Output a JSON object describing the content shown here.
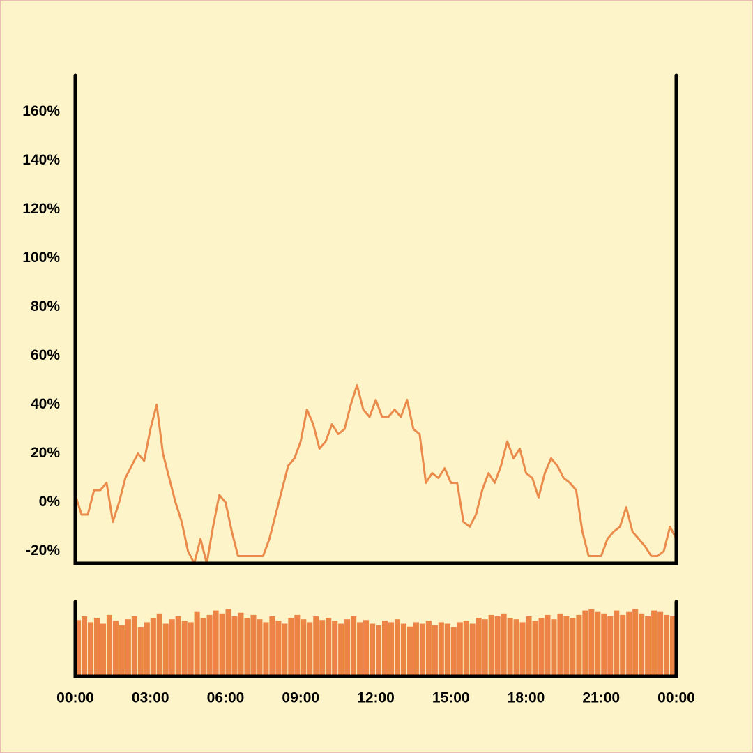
{
  "chart_data": [
    {
      "type": "line",
      "x": [
        0,
        0.25,
        0.5,
        0.75,
        1,
        1.25,
        1.5,
        1.75,
        2,
        2.25,
        2.5,
        2.75,
        3,
        3.25,
        3.5,
        3.75,
        4,
        4.25,
        4.5,
        4.75,
        5,
        5.25,
        5.5,
        5.75,
        6,
        6.25,
        6.5,
        6.75,
        7,
        7.25,
        7.5,
        7.75,
        8,
        8.25,
        8.5,
        8.75,
        9,
        9.25,
        9.5,
        9.75,
        10,
        10.25,
        10.5,
        10.75,
        11,
        11.25,
        11.5,
        11.75,
        12,
        12.25,
        12.5,
        12.75,
        13,
        13.25,
        13.5,
        13.75,
        14,
        14.25,
        14.5,
        14.75,
        15,
        15.25,
        15.5,
        15.75,
        16,
        16.25,
        16.5,
        16.75,
        17,
        17.25,
        17.5,
        17.75,
        18,
        18.25,
        18.5,
        18.75,
        19,
        19.25,
        19.5,
        19.75,
        20,
        20.25,
        20.5,
        20.75,
        21,
        21.25,
        21.5,
        21.75,
        22,
        22.25,
        22.5,
        22.75,
        23,
        23.25,
        23.5,
        23.75,
        24
      ],
      "series": [
        {
          "color": "#ea8b4c",
          "values": [
            3,
            -5,
            -5,
            5,
            5,
            8,
            -8,
            0,
            10,
            15,
            20,
            17,
            30,
            40,
            20,
            10,
            0,
            -8,
            -20,
            -25,
            -15,
            -25,
            -10,
            3,
            0,
            -12,
            -22,
            -22,
            -22,
            -22,
            -22,
            -15,
            -5,
            5,
            15,
            18,
            25,
            38,
            32,
            22,
            25,
            32,
            28,
            30,
            40,
            48,
            38,
            35,
            42,
            35,
            35,
            38,
            35,
            42,
            30,
            28,
            8,
            12,
            10,
            14,
            8,
            8,
            -8,
            -10,
            -5,
            5,
            12,
            8,
            15,
            25,
            18,
            22,
            12,
            10,
            2,
            12,
            18,
            15,
            10,
            8,
            5,
            -12,
            -22,
            -22,
            -22,
            -15,
            -12,
            -10,
            -2,
            -12,
            -15,
            -18,
            -22,
            -22,
            -20,
            -10,
            -15
          ]
        }
      ],
      "xlim": [
        0,
        24
      ],
      "ylim": [
        -25,
        175
      ],
      "yticks": [
        {
          "value": -20,
          "label": "-20%"
        },
        {
          "value": 0,
          "label": "0%"
        },
        {
          "value": 20,
          "label": "20%"
        },
        {
          "value": 40,
          "label": "40%"
        },
        {
          "value": 60,
          "label": "60%"
        },
        {
          "value": 80,
          "label": "80%"
        },
        {
          "value": 100,
          "label": "100%"
        },
        {
          "value": 120,
          "label": "120%"
        },
        {
          "value": 140,
          "label": "140%"
        },
        {
          "value": 160,
          "label": "160%"
        }
      ]
    },
    {
      "type": "bar",
      "x": [
        0,
        0.25,
        0.5,
        0.75,
        1,
        1.25,
        1.5,
        1.75,
        2,
        2.25,
        2.5,
        2.75,
        3,
        3.25,
        3.5,
        3.75,
        4,
        4.25,
        4.5,
        4.75,
        5,
        5.25,
        5.5,
        5.75,
        6,
        6.25,
        6.5,
        6.75,
        7,
        7.25,
        7.5,
        7.75,
        8,
        8.25,
        8.5,
        8.75,
        9,
        9.25,
        9.5,
        9.75,
        10,
        10.25,
        10.5,
        10.75,
        11,
        11.25,
        11.5,
        11.75,
        12,
        12.25,
        12.5,
        12.75,
        13,
        13.25,
        13.5,
        13.75,
        14,
        14.25,
        14.5,
        14.75,
        15,
        15.25,
        15.5,
        15.75,
        16,
        16.25,
        16.5,
        16.75,
        17,
        17.25,
        17.5,
        17.75,
        18,
        18.25,
        18.5,
        18.75,
        19,
        19.25,
        19.5,
        19.75,
        20,
        20.25,
        20.5,
        20.75,
        21,
        21.25,
        21.5,
        21.75,
        22,
        22.25,
        22.5,
        22.75,
        23,
        23.25,
        23.5,
        23.75
      ],
      "values": [
        75,
        80,
        72,
        78,
        70,
        82,
        74,
        68,
        76,
        80,
        65,
        72,
        78,
        84,
        70,
        76,
        80,
        74,
        72,
        86,
        78,
        82,
        88,
        84,
        90,
        80,
        85,
        78,
        82,
        76,
        72,
        80,
        74,
        70,
        78,
        82,
        76,
        72,
        80,
        75,
        78,
        74,
        70,
        76,
        80,
        72,
        75,
        70,
        68,
        74,
        72,
        76,
        70,
        66,
        72,
        70,
        74,
        68,
        72,
        70,
        65,
        72,
        74,
        70,
        78,
        76,
        82,
        80,
        84,
        78,
        76,
        72,
        80,
        74,
        78,
        82,
        76,
        84,
        80,
        78,
        82,
        88,
        90,
        86,
        84,
        80,
        88,
        82,
        86,
        90,
        84,
        80,
        88,
        86,
        82,
        80
      ],
      "color": "#ec8446",
      "xlim": [
        0,
        24
      ],
      "ylim": [
        0,
        100
      ],
      "xticks": [
        {
          "value": 0,
          "label": "00:00"
        },
        {
          "value": 3,
          "label": "03:00"
        },
        {
          "value": 6,
          "label": "06:00"
        },
        {
          "value": 9,
          "label": "09:00"
        },
        {
          "value": 12,
          "label": "12:00"
        },
        {
          "value": 15,
          "label": "15:00"
        },
        {
          "value": 18,
          "label": "18:00"
        },
        {
          "value": 21,
          "label": "21:00"
        },
        {
          "value": 24,
          "label": "00:00"
        }
      ]
    }
  ]
}
